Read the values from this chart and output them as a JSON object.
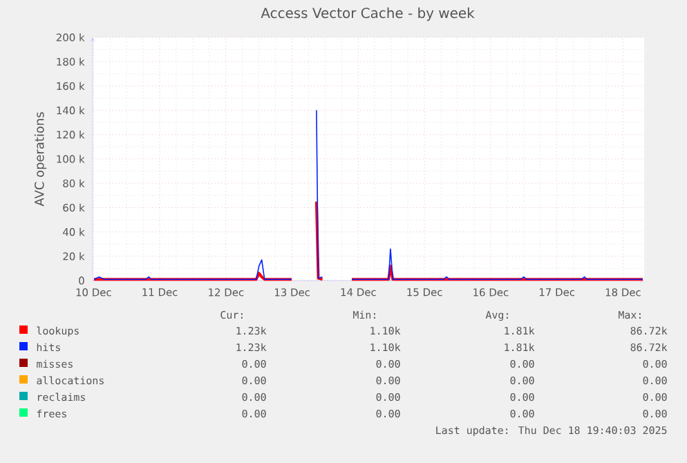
{
  "chart_data": {
    "type": "line",
    "title": "Access Vector Cache - by week",
    "ylabel": "AVC operations",
    "x": [
      "2025-12-10T12:10",
      "2025-12-10T14:00",
      "2025-12-10T16:00",
      "2025-12-11T07:00",
      "2025-12-11T08:00",
      "2025-12-11T09:00",
      "2025-12-12T23:00",
      "2025-12-13T00:00",
      "2025-12-13T01:00",
      "2025-12-13T02:00",
      "2025-12-13T11:50",
      "2025-12-13T16:00",
      "2025-12-13T20:50",
      "2025-12-13T21:30",
      "2025-12-13T23:00",
      "2025-12-14T04:00",
      "2025-12-14T09:40",
      "2025-12-14T23:00",
      "2025-12-14T23:40",
      "2025-12-15T00:30",
      "2025-12-15T19:00",
      "2025-12-15T20:00",
      "2025-12-15T21:00",
      "2025-12-16T23:00",
      "2025-12-17T00:00",
      "2025-12-17T01:00",
      "2025-12-17T21:00",
      "2025-12-17T22:00",
      "2025-12-17T23:00",
      "2025-12-18T19:10"
    ],
    "series": [
      {
        "name": "lookups",
        "color": "#ff0000",
        "values": [
          1000,
          1000,
          1000,
          1000,
          1000,
          1000,
          1000,
          6000,
          3000,
          1000,
          1000,
          null,
          65000,
          2000,
          1000,
          null,
          1000,
          1000,
          12000,
          1000,
          1000,
          1000,
          1000,
          1000,
          1000,
          1000,
          1000,
          1000,
          1000,
          1000
        ]
      },
      {
        "name": "hits",
        "color": "#0022ff",
        "values": [
          1000,
          3000,
          1000,
          1000,
          3000,
          1000,
          1000,
          12000,
          17000,
          1000,
          1000,
          null,
          140000,
          2000,
          3000,
          null,
          1000,
          1000,
          26000,
          1000,
          1000,
          3000,
          1000,
          1000,
          3000,
          1000,
          1000,
          3000,
          1000,
          1000
        ]
      },
      {
        "name": "misses",
        "color": "#990000",
        "values": [
          null,
          null,
          null,
          null,
          null,
          null,
          null,
          null,
          null,
          null,
          null,
          null,
          null,
          null,
          null,
          null,
          null,
          null,
          null,
          null,
          null,
          null,
          null,
          null,
          null,
          null,
          null,
          null,
          null,
          null
        ]
      },
      {
        "name": "allocations",
        "color": "#ffa500",
        "values": [
          null,
          null,
          null,
          null,
          null,
          null,
          null,
          null,
          null,
          null,
          null,
          null,
          null,
          null,
          null,
          null,
          null,
          null,
          null,
          null,
          null,
          null,
          null,
          null,
          null,
          null,
          null,
          null,
          null,
          null
        ]
      },
      {
        "name": "reclaims",
        "color": "#00aaaa",
        "values": [
          null,
          null,
          null,
          null,
          null,
          null,
          null,
          null,
          null,
          null,
          null,
          null,
          null,
          null,
          null,
          null,
          null,
          null,
          null,
          null,
          null,
          null,
          null,
          null,
          null,
          null,
          null,
          null,
          null,
          null
        ]
      },
      {
        "name": "frees",
        "color": "#00ff7f",
        "values": [
          null,
          null,
          null,
          null,
          null,
          null,
          null,
          null,
          null,
          null,
          null,
          null,
          null,
          null,
          null,
          null,
          null,
          null,
          null,
          null,
          null,
          null,
          null,
          null,
          null,
          null,
          null,
          null,
          null,
          null
        ]
      }
    ],
    "xlim": [
      "2025-12-10T11:40",
      "2025-12-18T19:40"
    ],
    "xticks": [
      {
        "value": "2025-12-10T12:00",
        "label": "10 Dec"
      },
      {
        "value": "2025-12-11T12:00",
        "label": "11 Dec"
      },
      {
        "value": "2025-12-12T12:00",
        "label": "12 Dec"
      },
      {
        "value": "2025-12-13T12:00",
        "label": "13 Dec"
      },
      {
        "value": "2025-12-14T12:00",
        "label": "14 Dec"
      },
      {
        "value": "2025-12-15T12:00",
        "label": "15 Dec"
      },
      {
        "value": "2025-12-16T12:00",
        "label": "16 Dec"
      },
      {
        "value": "2025-12-17T12:00",
        "label": "17 Dec"
      },
      {
        "value": "2025-12-18T12:00",
        "label": "18 Dec"
      }
    ],
    "ylim": [
      0,
      200000
    ],
    "yticks": [
      0,
      {
        "value": 20000,
        "label": "20 k"
      },
      {
        "value": 40000,
        "label": "40 k"
      },
      {
        "value": 60000,
        "label": "60 k"
      },
      {
        "value": 80000,
        "label": "80 k"
      },
      {
        "value": 100000,
        "label": "100 k"
      },
      {
        "value": 120000,
        "label": "120 k"
      },
      {
        "value": 140000,
        "label": "140 k"
      },
      {
        "value": 160000,
        "label": "160 k"
      },
      {
        "value": 180000,
        "label": "180 k"
      },
      {
        "value": 200000,
        "label": "200 k"
      }
    ],
    "grid": true,
    "legend": "bottom",
    "annotations": [
      "Cur:",
      "Min:",
      "Avg:",
      "Max:",
      "1.23k",
      "1.10k",
      "1.81k",
      "86.72k",
      "1.23k",
      "1.10k",
      "1.81k",
      "86.72k",
      "0.00",
      "0.00",
      "0.00",
      "0.00",
      "0.00",
      "0.00",
      "0.00",
      "0.00",
      "0.00",
      "0.00",
      "0.00",
      "0.00",
      "0.00",
      "0.00",
      "0.00",
      "0.00",
      "Last update: Thu Dec 18 19:40:03 2025"
    ]
  }
}
